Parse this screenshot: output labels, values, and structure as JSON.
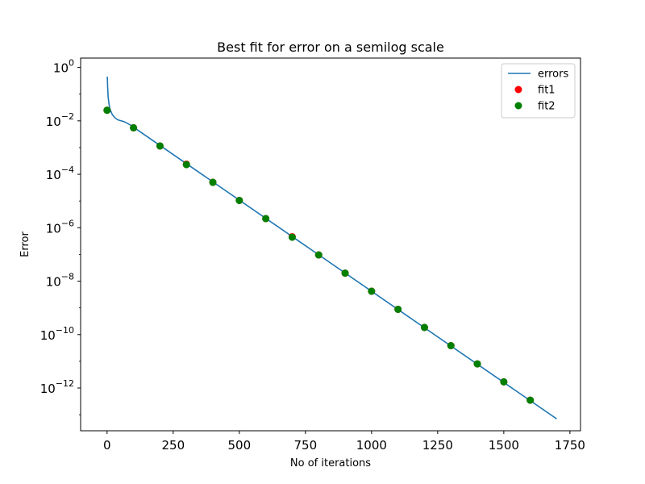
{
  "chart_data": {
    "type": "line",
    "title": "Best fit for error on a semilog scale",
    "xlabel": "No of iterations",
    "ylabel": "Error",
    "xlim": [
      -100,
      1790
    ],
    "ylim_log10": [
      -13.6,
      0.35
    ],
    "yscale": "log",
    "grid": false,
    "legend_position": "top-right",
    "x_ticks": [
      {
        "value": 0,
        "label": "0"
      },
      {
        "value": 250,
        "label": "250"
      },
      {
        "value": 500,
        "label": "500"
      },
      {
        "value": 750,
        "label": "750"
      },
      {
        "value": 1000,
        "label": "1000"
      },
      {
        "value": 1250,
        "label": "1250"
      },
      {
        "value": 1500,
        "label": "1500"
      },
      {
        "value": 1750,
        "label": "1750"
      }
    ],
    "y_ticks": [
      {
        "exp": 0,
        "base": "10",
        "sup": "0"
      },
      {
        "exp": -2,
        "base": "10",
        "sup": "−2"
      },
      {
        "exp": -4,
        "base": "10",
        "sup": "−4"
      },
      {
        "exp": -6,
        "base": "10",
        "sup": "−6"
      },
      {
        "exp": -8,
        "base": "10",
        "sup": "−8"
      },
      {
        "exp": -10,
        "base": "10",
        "sup": "−10"
      },
      {
        "exp": -12,
        "base": "10",
        "sup": "−12"
      }
    ],
    "series": [
      {
        "name": "errors",
        "kind": "line",
        "color": "#1f77b4",
        "points": [
          [
            1,
            0.45
          ],
          [
            2,
            0.2
          ],
          [
            4,
            0.08
          ],
          [
            7,
            0.045
          ],
          [
            10,
            0.03
          ],
          [
            15,
            0.022
          ],
          [
            20,
            0.017
          ],
          [
            30,
            0.013
          ],
          [
            40,
            0.011
          ],
          [
            50,
            0.0102
          ],
          [
            60,
            0.0096
          ],
          [
            70,
            0.0088
          ],
          [
            80,
            0.0078
          ],
          [
            90,
            0.0068
          ],
          [
            100,
            0.0058
          ],
          [
            1700,
            7e-14
          ]
        ]
      },
      {
        "name": "fit1",
        "kind": "scatter",
        "color": "#ff0000",
        "points": [
          [
            0,
            0.025
          ],
          [
            100,
            0.0055
          ],
          [
            200,
            0.00115
          ],
          [
            300,
            0.00024
          ],
          [
            400,
            5e-05
          ],
          [
            500,
            1.05e-05
          ],
          [
            600,
            2.2e-06
          ],
          [
            700,
            4.6e-07
          ],
          [
            800,
            9.6e-08
          ],
          [
            900,
            2e-08
          ],
          [
            1000,
            4.2e-09
          ],
          [
            1100,
            8.8e-10
          ],
          [
            1200,
            1.85e-10
          ],
          [
            1300,
            3.85e-11
          ],
          [
            1400,
            8e-12
          ],
          [
            1500,
            1.7e-12
          ],
          [
            1600,
            3.5e-13
          ]
        ]
      },
      {
        "name": "fit2",
        "kind": "scatter",
        "color": "#008000",
        "points": [
          [
            0,
            0.025
          ],
          [
            100,
            0.0055
          ],
          [
            200,
            0.00115
          ],
          [
            300,
            0.00023
          ],
          [
            400,
            5e-05
          ],
          [
            500,
            1.05e-05
          ],
          [
            600,
            2.2e-06
          ],
          [
            700,
            4.4e-07
          ],
          [
            800,
            9.6e-08
          ],
          [
            900,
            2e-08
          ],
          [
            1000,
            4.2e-09
          ],
          [
            1100,
            8.8e-10
          ],
          [
            1200,
            1.85e-10
          ],
          [
            1300,
            3.85e-11
          ],
          [
            1400,
            8e-12
          ],
          [
            1500,
            1.7e-12
          ],
          [
            1600,
            3.5e-13
          ]
        ]
      }
    ]
  }
}
